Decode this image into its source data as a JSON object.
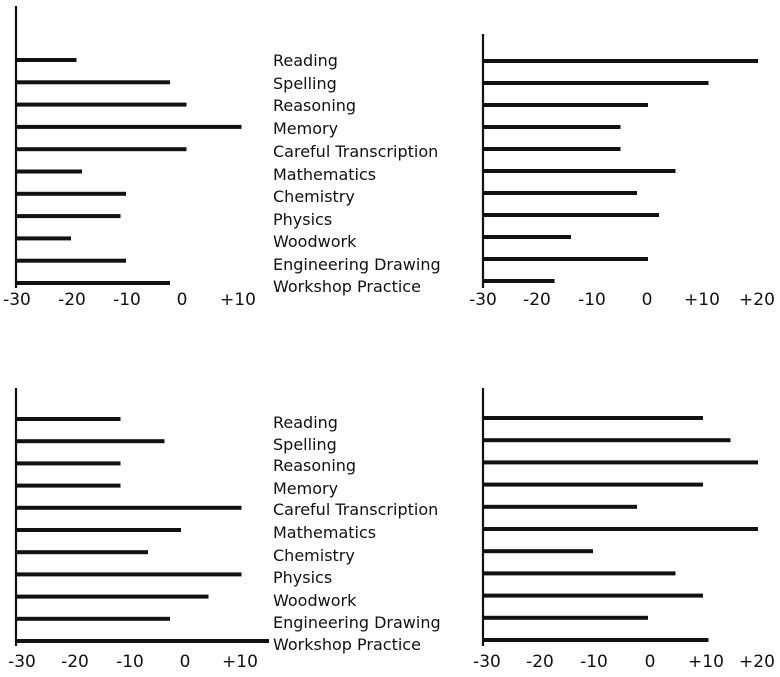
{
  "subjects": [
    "Reading",
    "Spelling",
    "Reasoning",
    "Memory",
    "Careful Transcription",
    "Mathematics",
    "Chemistry",
    "Physics",
    "Woodwork",
    "Engineering Drawing",
    "Workshop Practice"
  ],
  "tick_labels": {
    "narrow_top": [
      "-30",
      "-20",
      "-10",
      "0",
      "+10"
    ],
    "wide": [
      "-30",
      "-20",
      "-10",
      "0",
      "+10",
      "+20"
    ],
    "narrow_bottom": [
      "-30",
      "-20",
      "-10",
      "0",
      "+10"
    ]
  },
  "colors": {
    "ink": "#111111",
    "background": "#ffffff"
  },
  "chart_data": [
    {
      "type": "bar",
      "orientation": "horizontal",
      "position": "top-left",
      "categories": [
        "Reading",
        "Spelling",
        "Reasoning",
        "Memory",
        "Careful Transcription",
        "Mathematics",
        "Chemistry",
        "Physics",
        "Woodwork",
        "Engineering Drawing",
        "Workshop Practice"
      ],
      "values": [
        -19,
        -2,
        1,
        11,
        1,
        -18,
        -10,
        -11,
        -20,
        -10,
        -2
      ],
      "xlim": [
        -30,
        11
      ],
      "xticks": [
        -30,
        -20,
        -10,
        0,
        10
      ],
      "grid": false
    },
    {
      "type": "bar",
      "orientation": "horizontal",
      "position": "top-right",
      "categories": [
        "Reading",
        "Spelling",
        "Reasoning",
        "Memory",
        "Careful Transcription",
        "Mathematics",
        "Chemistry",
        "Physics",
        "Woodwork",
        "Engineering Drawing",
        "Workshop Practice"
      ],
      "values": [
        20,
        11,
        0,
        -5,
        -5,
        5,
        -2,
        2,
        -14,
        0,
        -17
      ],
      "xlim": [
        -30,
        21
      ],
      "xticks": [
        -30,
        -20,
        -10,
        0,
        10,
        20
      ],
      "grid": false
    },
    {
      "type": "bar",
      "orientation": "horizontal",
      "position": "bottom-left",
      "categories": [
        "Reading",
        "Spelling",
        "Reasoning",
        "Memory",
        "Careful Transcription",
        "Mathematics",
        "Chemistry",
        "Physics",
        "Woodwork",
        "Engineering Drawing",
        "Workshop Practice"
      ],
      "values": [
        -11,
        -3,
        -11,
        -11,
        11,
        0,
        -6,
        11,
        5,
        -2,
        16
      ],
      "xlim": [
        -30,
        16
      ],
      "xticks": [
        -30,
        -20,
        -10,
        0,
        10
      ],
      "grid": false
    },
    {
      "type": "bar",
      "orientation": "horizontal",
      "position": "bottom-right",
      "categories": [
        "Reading",
        "Spelling",
        "Reasoning",
        "Memory",
        "Careful Transcription",
        "Mathematics",
        "Chemistry",
        "Physics",
        "Woodwork",
        "Engineering Drawing",
        "Workshop Practice"
      ],
      "values": [
        10,
        15,
        20,
        10,
        -2,
        20,
        -10,
        5,
        10,
        0,
        11
      ],
      "xlim": [
        -30,
        21
      ],
      "xticks": [
        -30,
        -20,
        -10,
        0,
        10,
        20
      ],
      "grid": false
    }
  ]
}
